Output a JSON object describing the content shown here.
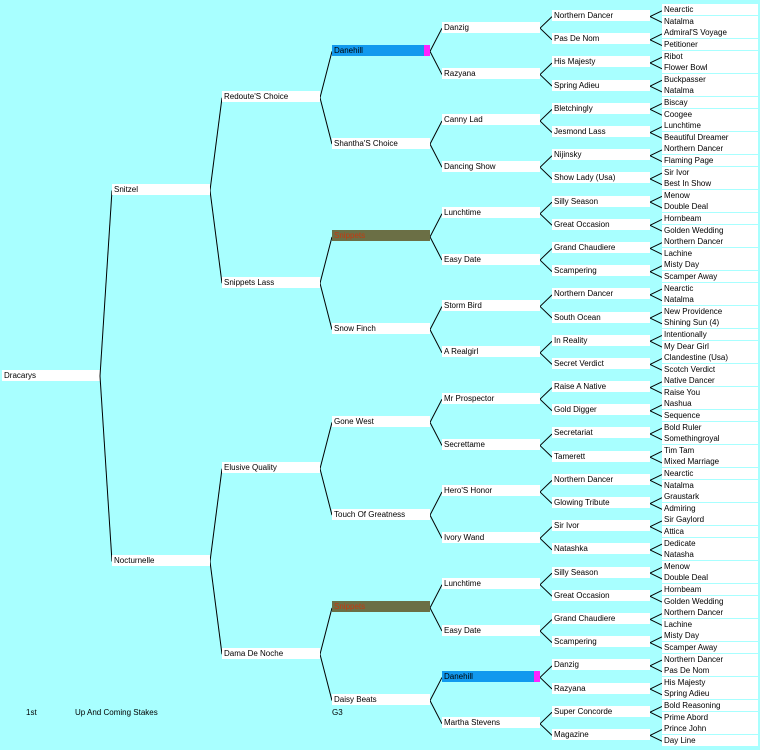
{
  "root": "Dracarys",
  "generations": [
    [
      "Snitzel",
      "Nocturnelle"
    ],
    [
      "Redoute'S Choice",
      "Snippets Lass",
      "Elusive Quality",
      "Dama De Noche"
    ],
    [
      "Danehill",
      "Shantha'S Choice",
      "Snippets",
      "Snow Finch",
      "Gone West",
      "Touch Of Greatness",
      "Snippets",
      "Daisy Beats"
    ],
    [
      "Danzig",
      "Razyana",
      "Canny Lad",
      "Dancing Show",
      "Lunchtime",
      "Easy Date",
      "Storm Bird",
      "A Realgirl",
      "Mr Prospector",
      "Secrettame",
      "Hero'S Honor",
      "Ivory Wand",
      "Lunchtime",
      "Easy Date",
      "Danehill",
      "Martha Stevens"
    ],
    [
      "Northern Dancer",
      "Pas De Nom",
      "His Majesty",
      "Spring Adieu",
      "Bletchingly",
      "Jesmond Lass",
      "Nijinsky",
      "Show Lady (Usa)",
      "Silly Season",
      "Great Occasion",
      "Grand Chaudiere",
      "Scampering",
      "Northern Dancer",
      "South Ocean",
      "In Reality",
      "Secret Verdict",
      "Raise A Native",
      "Gold Digger",
      "Secretariat",
      "Tamerett",
      "Northern Dancer",
      "Glowing Tribute",
      "Sir Ivor",
      "Natashka",
      "Silly Season",
      "Great Occasion",
      "Grand Chaudiere",
      "Scampering",
      "Danzig",
      "Razyana",
      "Super Concorde",
      "Magazine"
    ],
    [
      "Nearctic",
      "Natalma",
      "Admiral'S Voyage",
      "Petitioner",
      "Ribot",
      "Flower Bowl",
      "Buckpasser",
      "Natalma",
      "Biscay",
      "Coogee",
      "Lunchtime",
      "Beautiful Dreamer",
      "Northern Dancer",
      "Flaming Page",
      "Sir Ivor",
      "Best In Show",
      "Menow",
      "Double Deal",
      "Hornbeam",
      "Golden Wedding",
      "Northern Dancer",
      "Lachine",
      "Misty Day",
      "Scamper Away",
      "Nearctic",
      "Natalma",
      "New Providence",
      "Shining Sun (4)",
      "Intentionally",
      "My Dear Girl",
      "Clandestine (Usa)",
      "Scotch Verdict",
      "Native Dancer",
      "Raise You",
      "Nashua",
      "Sequence",
      "Bold Ruler",
      "Somethingroyal",
      "Tim Tam",
      "Mixed Marriage",
      "Nearctic",
      "Natalma",
      "Graustark",
      "Admiring",
      "Sir Gaylord",
      "Attica",
      "Dedicate",
      "Natasha",
      "Menow",
      "Double Deal",
      "Hornbeam",
      "Golden Wedding",
      "Northern Dancer",
      "Lachine",
      "Misty Day",
      "Scamper Away",
      "Northern Dancer",
      "Pas De Nom",
      "His Majesty",
      "Spring Adieu",
      "Bold Reasoning",
      "Prime Abord",
      "Prince John",
      "Day Line"
    ]
  ],
  "highlights": [
    {
      "gen": 2,
      "index": 0,
      "style": "blue",
      "marker": true
    },
    {
      "gen": 2,
      "index": 2,
      "style": "green",
      "marker": false
    },
    {
      "gen": 2,
      "index": 6,
      "style": "green",
      "marker": false
    },
    {
      "gen": 3,
      "index": 14,
      "style": "blue",
      "marker": true
    }
  ],
  "footer": {
    "place": "1st",
    "race": "Up And Coming Stakes",
    "grade": "G3"
  },
  "colors": {
    "background": "#a8ffff",
    "highlight_blue": "#1199ee",
    "highlight_green": "#6b6f45",
    "highlight_green_text": "#c43a12",
    "marker": "#ff22ff",
    "lines": "#000000"
  }
}
